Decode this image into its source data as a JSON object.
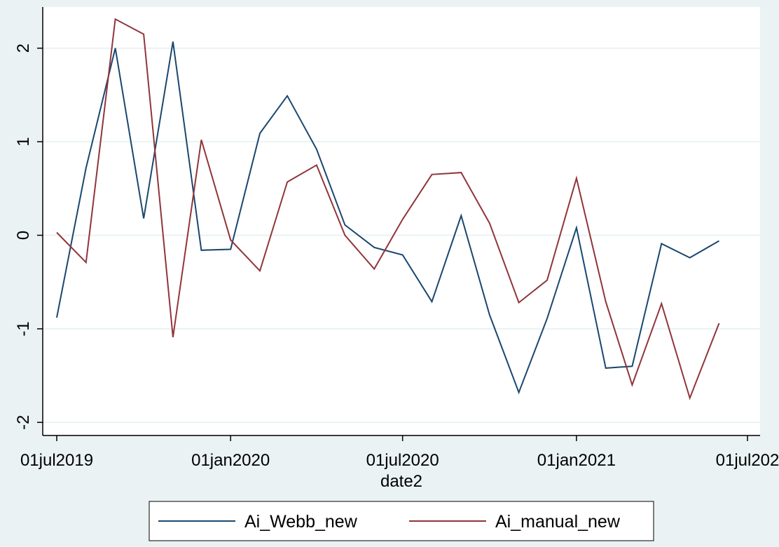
{
  "chart_data": {
    "type": "line",
    "title": "",
    "xlabel": "date2",
    "ylabel": "",
    "ylim": [
      -2.15,
      2.45
    ],
    "xlim": [
      "2019-07-01",
      "2021-07-01"
    ],
    "grid": "horizontal",
    "legend_position": "bottom",
    "x_ticks": [
      "2019-07-01",
      "2020-01-01",
      "2020-07-01",
      "2021-01-01",
      "2021-07-01"
    ],
    "x_tick_labels": [
      "01jul2019",
      "01jan2020",
      "01jul2020",
      "01jan2021",
      "01jul202"
    ],
    "y_ticks": [
      -2,
      -1,
      0,
      1,
      2
    ],
    "y_tick_labels": [
      "-2",
      "-1",
      "0",
      "1",
      "2"
    ],
    "x": [
      "2019-07-01",
      "2019-08-01",
      "2019-09-01",
      "2019-10-01",
      "2019-11-01",
      "2019-12-01",
      "2020-01-01",
      "2020-02-01",
      "2020-03-01",
      "2020-04-01",
      "2020-05-01",
      "2020-06-01",
      "2020-07-01",
      "2020-08-01",
      "2020-09-01",
      "2020-10-01",
      "2020-11-01",
      "2020-12-01",
      "2021-01-01",
      "2021-02-01",
      "2021-03-01",
      "2021-04-01",
      "2021-05-01",
      "2021-06-01"
    ],
    "series": [
      {
        "name": "Ai_Webb_new",
        "color": "#1a476f",
        "values": [
          -0.88,
          0.72,
          2.0,
          0.18,
          2.07,
          -0.16,
          -0.15,
          1.09,
          1.49,
          0.92,
          0.11,
          -0.13,
          -0.21,
          -0.71,
          0.21,
          -0.85,
          -1.68,
          -0.89,
          0.08,
          -1.42,
          -1.4,
          -0.09,
          -0.24,
          -0.06
        ]
      },
      {
        "name": "Ai_manual_new",
        "color": "#90353b",
        "values": [
          0.03,
          -0.29,
          2.31,
          2.15,
          -1.09,
          1.02,
          -0.05,
          -0.38,
          0.57,
          0.75,
          0.0,
          -0.36,
          0.17,
          0.65,
          0.67,
          0.13,
          -0.72,
          -0.48,
          0.61,
          -0.71,
          -1.6,
          -0.73,
          -1.74,
          -0.94
        ]
      }
    ]
  },
  "colors": {
    "background": "#eaf2f3",
    "plot_area": "#ffffff",
    "grid": "#eaf2f3"
  }
}
